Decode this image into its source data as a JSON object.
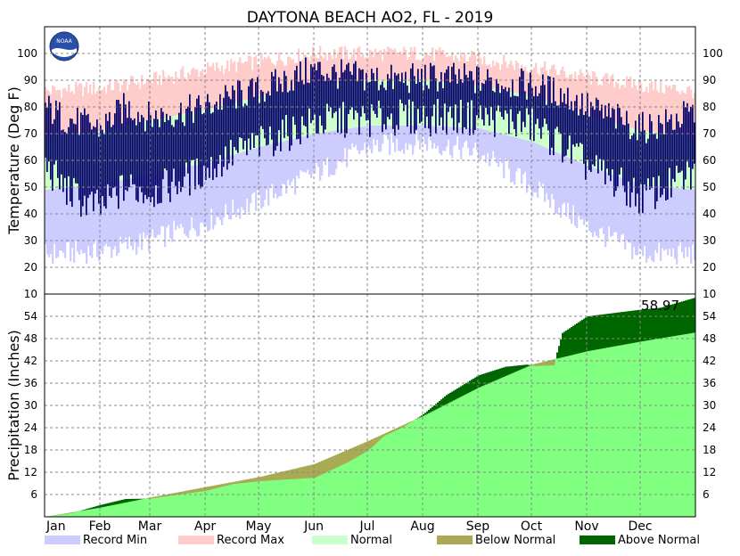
{
  "chart_data": [
    {
      "type": "bar",
      "panel": "temperature",
      "title": "DAYTONA BEACH AO2, FL - 2019",
      "ylabel": "Temperature (Deg F)",
      "ylim": [
        10,
        110
      ],
      "yticks": [
        20,
        30,
        40,
        50,
        60,
        70,
        80,
        90,
        100
      ],
      "grid": true,
      "months": [
        "Jan",
        "Feb",
        "Mar",
        "Apr",
        "May",
        "Jun",
        "Jul",
        "Aug",
        "Sep",
        "Oct",
        "Nov",
        "Dec"
      ],
      "month_start_day": [
        0,
        31,
        59,
        90,
        120,
        151,
        181,
        212,
        243,
        273,
        304,
        334
      ],
      "days_in_year": 365,
      "series": [
        {
          "name": "Record Min",
          "color": "#ccccff"
        },
        {
          "name": "Record Max",
          "color": "#ffcccc"
        },
        {
          "name": "Normal",
          "color": "#ccffcc"
        },
        {
          "name": "Observed",
          "color": "#000066"
        }
      ],
      "climatology": {
        "days": [
          0,
          31,
          59,
          90,
          120,
          151,
          181,
          212,
          243,
          273,
          304,
          334,
          364
        ],
        "record_max": [
          86,
          87,
          90,
          94,
          97,
          100,
          100,
          100,
          98,
          95,
          91,
          88,
          86
        ],
        "record_min": [
          25,
          26,
          30,
          37,
          45,
          55,
          65,
          67,
          63,
          50,
          35,
          25,
          25
        ],
        "normal_high": [
          69,
          71,
          75,
          79,
          84,
          88,
          90,
          90,
          88,
          84,
          77,
          71,
          69
        ],
        "normal_low": [
          49,
          51,
          55,
          59,
          65,
          70,
          73,
          73,
          72,
          67,
          58,
          51,
          49
        ]
      },
      "observed_anchor": {
        "days": [
          0,
          10,
          20,
          31,
          45,
          59,
          75,
          90,
          105,
          120,
          135,
          151,
          166,
          181,
          196,
          212,
          227,
          243,
          258,
          273,
          289,
          304,
          319,
          334,
          349,
          364
        ],
        "high": [
          80,
          76,
          74,
          72,
          80,
          76,
          78,
          80,
          84,
          86,
          90,
          94,
          92,
          91,
          90,
          91,
          91,
          90,
          89,
          88,
          85,
          80,
          76,
          72,
          74,
          78
        ],
        "low": [
          58,
          50,
          45,
          42,
          50,
          48,
          52,
          56,
          62,
          66,
          70,
          74,
          75,
          75,
          76,
          76,
          76,
          76,
          75,
          73,
          66,
          58,
          52,
          46,
          50,
          55
        ]
      }
    },
    {
      "type": "area",
      "panel": "precipitation",
      "ylabel": "Precipitation (Inches)",
      "ylim": [
        0,
        60
      ],
      "yticks": [
        6,
        12,
        18,
        24,
        30,
        36,
        42,
        48,
        54
      ],
      "grid": true,
      "annotation": "58.97",
      "series": [
        {
          "name": "Normal",
          "color": "#80ff80",
          "days": [
            0,
            31,
            59,
            90,
            120,
            151,
            181,
            212,
            243,
            273,
            304,
            334,
            364
          ],
          "values": [
            0,
            2.5,
            5.2,
            8.0,
            10.7,
            14.2,
            20.4,
            27.2,
            34.8,
            41.0,
            44.6,
            47.2,
            49.6
          ]
        },
        {
          "name": "Observed",
          "color": "#000000",
          "days": [
            0,
            15,
            31,
            45,
            59,
            75,
            90,
            105,
            120,
            140,
            151,
            170,
            181,
            190,
            200,
            212,
            225,
            243,
            258,
            270,
            275,
            285,
            290,
            304,
            334,
            345,
            364
          ],
          "values": [
            0,
            1.0,
            3.2,
            4.8,
            4.9,
            6.0,
            7.0,
            8.8,
            9.6,
            10.2,
            10.5,
            14.8,
            17.9,
            21.8,
            24.0,
            27.6,
            32.8,
            38.1,
            40.4,
            41.0,
            40.6,
            40.8,
            49.5,
            54.0,
            55.8,
            56.3,
            58.97
          ]
        }
      ]
    }
  ],
  "legend": [
    {
      "label": "Record Min",
      "color": "#ccccff"
    },
    {
      "label": "Record Max",
      "color": "#ffcccc"
    },
    {
      "label": "Normal",
      "color": "#ccffcc"
    },
    {
      "label": "Below Normal",
      "color": "#aaaa55"
    },
    {
      "label": "Above Normal",
      "color": "#006600"
    }
  ],
  "colors": {
    "precip_normal": "#80ff80",
    "precip_below": "#aaaa55",
    "precip_above": "#006600",
    "temp_observed": "#000066"
  }
}
